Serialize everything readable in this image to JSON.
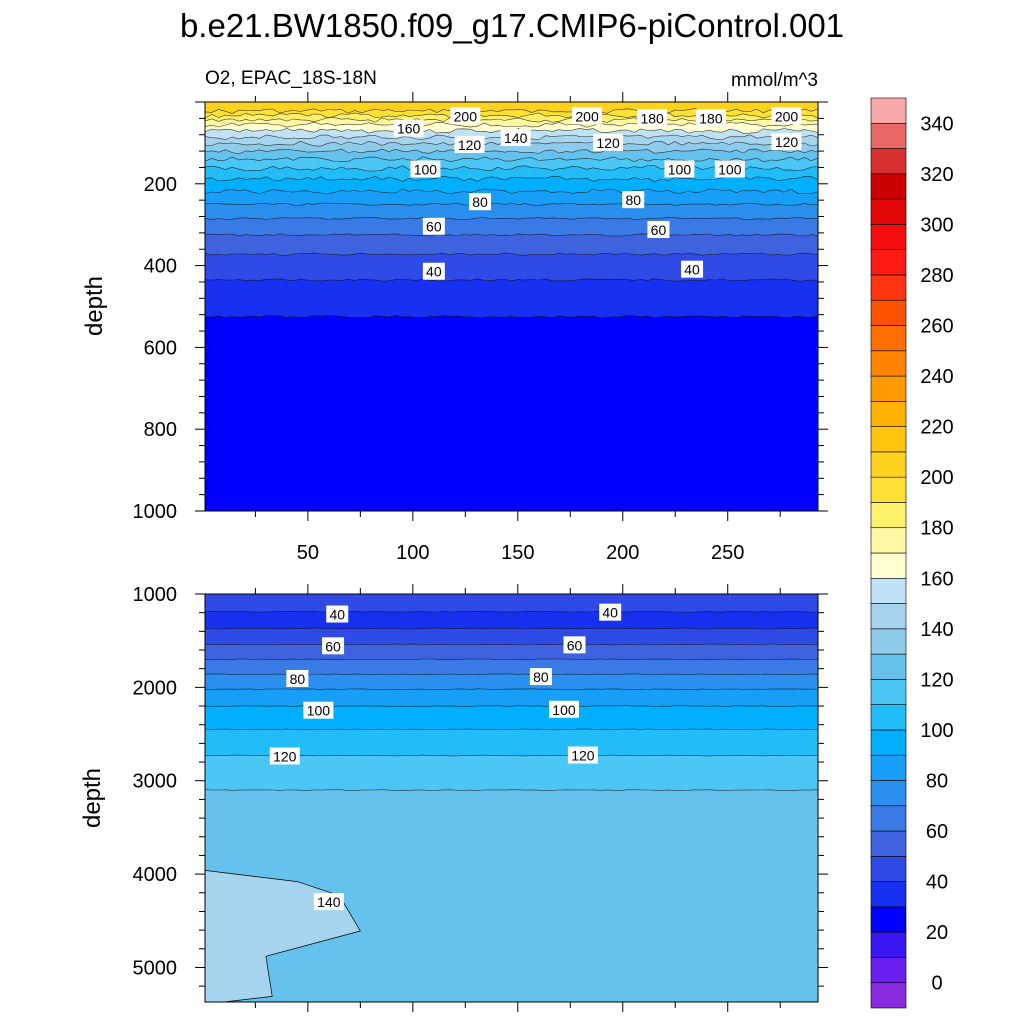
{
  "figure": {
    "title": "b.e21.BW1850.f09_g17.CMIP6-piControl.001",
    "left_label": "O2, EPAC_18S-18N",
    "right_label": "mmol/m^3"
  },
  "chart_data": [
    {
      "type": "heatmap",
      "panel": "upper",
      "ylabel": "depth",
      "xlabel": "",
      "xlim": [
        1,
        293
      ],
      "ylim": [
        1000,
        0
      ],
      "xticks": [
        50,
        100,
        150,
        200,
        250
      ],
      "yticks": [
        200,
        400,
        600,
        800,
        1000
      ],
      "contour_levels": [
        0,
        10,
        20,
        30,
        40,
        50,
        60,
        70,
        80,
        90,
        100,
        110,
        120,
        130,
        140,
        150,
        160,
        170,
        180,
        190,
        200,
        210,
        220,
        230,
        240,
        250,
        260,
        270,
        280,
        290,
        300,
        310,
        320,
        330,
        340,
        350
      ],
      "contour_depths": [
        {
          "level": 200,
          "depth": 22
        },
        {
          "level": 190,
          "depth": 33
        },
        {
          "level": 180,
          "depth": 44
        },
        {
          "level": 170,
          "depth": 56
        },
        {
          "level": 160,
          "depth": 70
        },
        {
          "level": 150,
          "depth": 86
        },
        {
          "level": 140,
          "depth": 102
        },
        {
          "level": 130,
          "depth": 120
        },
        {
          "level": 120,
          "depth": 140
        },
        {
          "level": 110,
          "depth": 162
        },
        {
          "level": 100,
          "depth": 188
        },
        {
          "level": 90,
          "depth": 218
        },
        {
          "level": 80,
          "depth": 250
        },
        {
          "level": 70,
          "depth": 285
        },
        {
          "level": 60,
          "depth": 325
        },
        {
          "level": 50,
          "depth": 372
        },
        {
          "level": 40,
          "depth": 435
        },
        {
          "level": 30,
          "depth": 525
        }
      ],
      "contour_labels": [
        {
          "text": "200",
          "x": 125,
          "depth": 35
        },
        {
          "text": "200",
          "x": 183,
          "depth": 35
        },
        {
          "text": "200",
          "x": 278,
          "depth": 35
        },
        {
          "text": "180",
          "x": 214,
          "depth": 40
        },
        {
          "text": "180",
          "x": 242,
          "depth": 40
        },
        {
          "text": "160",
          "x": 98,
          "depth": 65
        },
        {
          "text": "140",
          "x": 149,
          "depth": 88
        },
        {
          "text": "120",
          "x": 127,
          "depth": 105
        },
        {
          "text": "120",
          "x": 193,
          "depth": 100
        },
        {
          "text": "120",
          "x": 278,
          "depth": 98
        },
        {
          "text": "100",
          "x": 106,
          "depth": 165
        },
        {
          "text": "100",
          "x": 227,
          "depth": 165
        },
        {
          "text": "100",
          "x": 251,
          "depth": 165
        },
        {
          "text": "80",
          "x": 132,
          "depth": 245
        },
        {
          "text": "80",
          "x": 205,
          "depth": 240
        },
        {
          "text": "60",
          "x": 110,
          "depth": 305
        },
        {
          "text": "60",
          "x": 217,
          "depth": 313
        },
        {
          "text": "40",
          "x": 110,
          "depth": 415
        },
        {
          "text": "40",
          "x": 233,
          "depth": 410
        }
      ]
    },
    {
      "type": "heatmap",
      "panel": "lower",
      "ylabel": "depth",
      "xlabel": "",
      "xlim": [
        1,
        293
      ],
      "ylim": [
        5370,
        1000
      ],
      "yticks": [
        1000,
        2000,
        3000,
        4000,
        5000
      ],
      "contour_depths": [
        {
          "level": 40,
          "depth": 1190
        },
        {
          "level": 50,
          "depth": 1370
        },
        {
          "level": 60,
          "depth": 1540
        },
        {
          "level": 70,
          "depth": 1700
        },
        {
          "level": 80,
          "depth": 1860
        },
        {
          "level": 90,
          "depth": 2020
        },
        {
          "level": 100,
          "depth": 2200
        },
        {
          "level": 110,
          "depth": 2450
        },
        {
          "level": 120,
          "depth": 2730
        },
        {
          "level": 130,
          "depth": 3100
        }
      ],
      "contour_labels": [
        {
          "text": "40",
          "x": 64,
          "depth": 1220
        },
        {
          "text": "40",
          "x": 194,
          "depth": 1200
        },
        {
          "text": "60",
          "x": 62,
          "depth": 1560
        },
        {
          "text": "60",
          "x": 177,
          "depth": 1550
        },
        {
          "text": "80",
          "x": 45,
          "depth": 1910
        },
        {
          "text": "80",
          "x": 161,
          "depth": 1890
        },
        {
          "text": "100",
          "x": 55,
          "depth": 2250
        },
        {
          "text": "100",
          "x": 172,
          "depth": 2240
        },
        {
          "text": "120",
          "x": 39,
          "depth": 2740
        },
        {
          "text": "120",
          "x": 181,
          "depth": 2730
        },
        {
          "text": "140",
          "x": 60,
          "depth": 4300
        }
      ],
      "region_140": [
        [
          1,
          3960
        ],
        [
          45,
          4080
        ],
        [
          65,
          4230
        ],
        [
          75,
          4610
        ],
        [
          30,
          4880
        ],
        [
          33,
          5310
        ],
        [
          10,
          5370
        ],
        [
          1,
          5370
        ]
      ]
    }
  ],
  "colorbar": {
    "colors": [
      "#8a2be2",
      "#6a1ef0",
      "#3a16f2",
      "#0000ff",
      "#1830f0",
      "#2f4ae6",
      "#3f62de",
      "#3a7ae6",
      "#2b8ff0",
      "#179ff8",
      "#00b0ff",
      "#22bcf8",
      "#4cc6f4",
      "#65c2ec",
      "#8ecbeb",
      "#a6d3ee",
      "#c0e2f4",
      "#ffffd2",
      "#fff7a4",
      "#fff16c",
      "#ffe135",
      "#ffd21f",
      "#ffc40c",
      "#ffb200",
      "#ff9900",
      "#ff8200",
      "#ff6e00",
      "#ff5200",
      "#ff3410",
      "#ff1a14",
      "#f40e0e",
      "#e40606",
      "#cc0000",
      "#d83030",
      "#e86868",
      "#f7a8a8"
    ],
    "labels": [
      "0",
      "20",
      "40",
      "60",
      "80",
      "100",
      "120",
      "140",
      "160",
      "180",
      "200",
      "220",
      "240",
      "260",
      "280",
      "300",
      "320",
      "340"
    ]
  }
}
